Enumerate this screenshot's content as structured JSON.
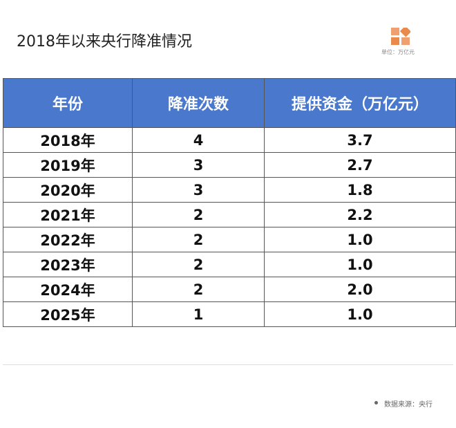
{
  "header": {
    "title": "2018年以来央行降准情况",
    "unit": "单位：万亿元"
  },
  "table": {
    "columns": [
      "年份",
      "降准次数",
      "提供资金（万亿元）"
    ],
    "rows": [
      [
        "2018年",
        "4",
        "3.7"
      ],
      [
        "2019年",
        "3",
        "2.7"
      ],
      [
        "2020年",
        "3",
        "1.8"
      ],
      [
        "2021年",
        "2",
        "2.2"
      ],
      [
        "2022年",
        "2",
        "1.0"
      ],
      [
        "2023年",
        "2",
        "1.0"
      ],
      [
        "2024年",
        "2",
        "2.0"
      ],
      [
        "2025年",
        "1",
        "1.0"
      ]
    ]
  },
  "footer": {
    "source": "数据来源：央行"
  }
}
